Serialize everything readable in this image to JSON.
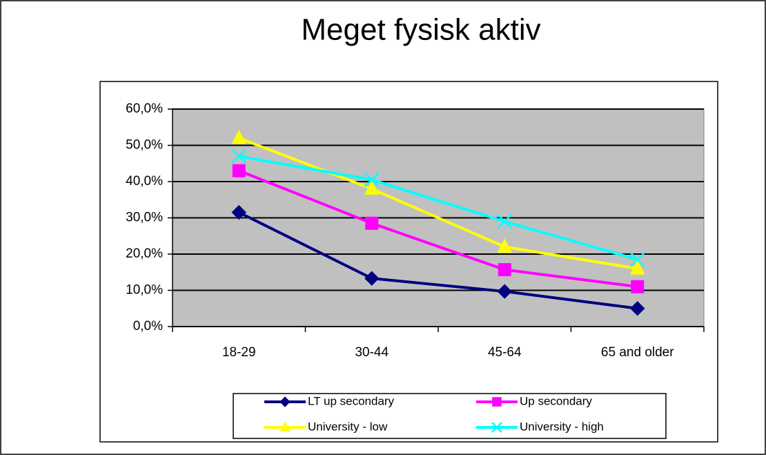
{
  "chart_data": {
    "type": "line",
    "title": "Meget fysisk aktiv",
    "categories": [
      "18-29",
      "30-44",
      "45-64",
      "65 and older"
    ],
    "series": [
      {
        "name": "LT up secondary",
        "color": "#000080",
        "marker": "diamond",
        "values": [
          31.5,
          13.3,
          9.7,
          5.0
        ]
      },
      {
        "name": "Up secondary",
        "color": "#ff00ff",
        "marker": "square",
        "values": [
          43.0,
          28.5,
          15.7,
          11.0
        ]
      },
      {
        "name": "University - low",
        "color": "#ffff00",
        "marker": "triangle",
        "values": [
          52.0,
          38.0,
          22.0,
          16.0
        ]
      },
      {
        "name": "University - high",
        "color": "#00ffff",
        "marker": "x",
        "values": [
          47.0,
          40.5,
          29.0,
          18.5
        ]
      }
    ],
    "ylim": [
      0,
      60
    ],
    "yticks": [
      {
        "value": 0,
        "label": "0,0%"
      },
      {
        "value": 10,
        "label": "10,0%"
      },
      {
        "value": 20,
        "label": "20,0%"
      },
      {
        "value": 30,
        "label": "30,0%"
      },
      {
        "value": 40,
        "label": "40,0%"
      },
      {
        "value": 50,
        "label": "50,0%"
      },
      {
        "value": 60,
        "label": "60,0%"
      }
    ],
    "grid": true,
    "legend": "bottom"
  }
}
